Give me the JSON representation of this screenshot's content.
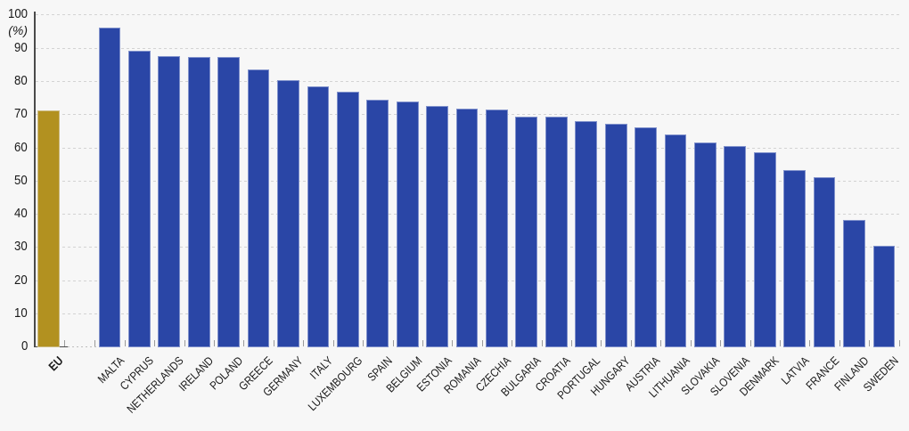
{
  "chart_data": {
    "type": "bar",
    "title": "",
    "subtitle": "",
    "xlabel": "",
    "ylabel": "(%)",
    "unit_label": "(%)",
    "ylim": [
      0,
      100
    ],
    "ytick_step": 10,
    "yticks": [
      0,
      10,
      20,
      30,
      40,
      50,
      60,
      70,
      80,
      90,
      100
    ],
    "grid": "horizontal-dashed",
    "legend_position": "none",
    "categories": [
      "EU",
      "MALTA",
      "CYPRUS",
      "NETHERLANDS",
      "IRELAND",
      "POLAND",
      "GREECE",
      "GERMANY",
      "ITALY",
      "LUXEMBOURG",
      "SPAIN",
      "BELGIUM",
      "ESTONIA",
      "ROMANIA",
      "CZECHIA",
      "BULGARIA",
      "CROATIA",
      "PORTUGAL",
      "HUNGARY",
      "AUSTRIA",
      "LITHUANIA",
      "SLOVAKIA",
      "SLOVENIA",
      "DENMARK",
      "LATVIA",
      "FRANCE",
      "FINLAND",
      "SWEDEN"
    ],
    "values": [
      71.0,
      96.1,
      89.2,
      87.6,
      87.3,
      87.1,
      83.4,
      80.3,
      78.4,
      76.8,
      74.4,
      73.9,
      72.5,
      71.6,
      71.3,
      69.3,
      69.2,
      67.9,
      67.0,
      65.9,
      63.8,
      61.6,
      60.5,
      58.6,
      53.2,
      51.0,
      38.2,
      30.5
    ],
    "highlight_category": "EU",
    "colors": {
      "eu_bar": "#B29120",
      "country_bar": "#2A46A6",
      "background": "#F7F7F7",
      "gridline": "#D3D3D3",
      "axis": "#4A4A4A",
      "tick": "#9B9B9B",
      "text": "#1A1A1A"
    }
  }
}
